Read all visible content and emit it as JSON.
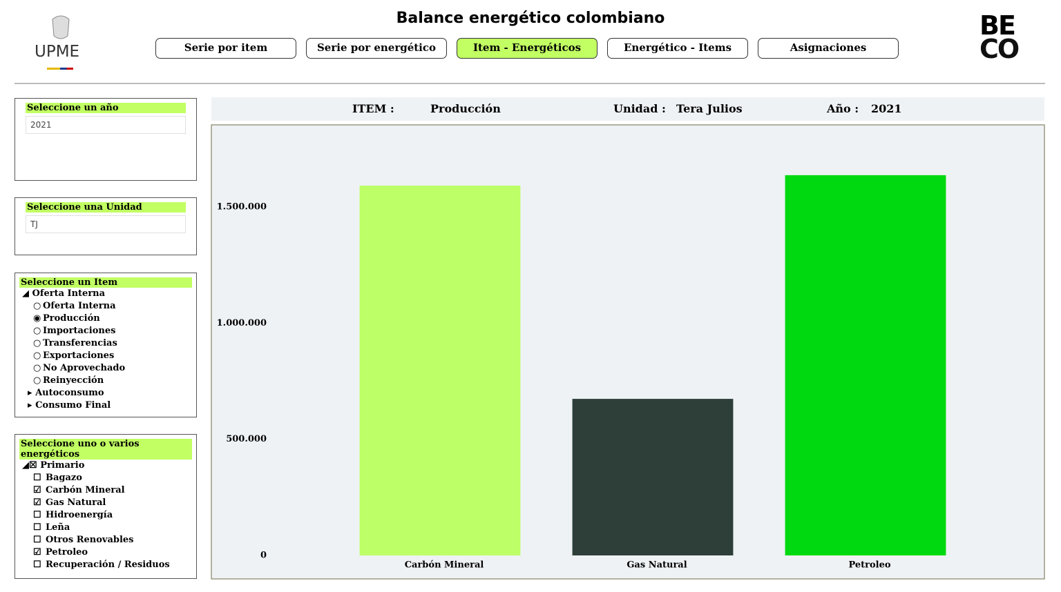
{
  "header": {
    "logo_left": "UPME",
    "title": "Balance energético colombiano",
    "logo_right_top": "BE",
    "logo_right_bottom": "CO",
    "nav": [
      "Serie por item",
      "Serie por energético",
      "Item - Energéticos",
      "Energético - Items",
      "Asignaciones"
    ],
    "nav_active": 2
  },
  "filters": {
    "year": {
      "title": "Seleccione un año",
      "value": "2021"
    },
    "unit": {
      "title": "Seleccione una Unidad",
      "value": "TJ"
    },
    "item": {
      "title": "Seleccione un Item",
      "group": "Oferta Interna",
      "options": [
        {
          "label": "Oferta Interna",
          "selected": false
        },
        {
          "label": "Producción",
          "selected": true
        },
        {
          "label": "Importaciones",
          "selected": false
        },
        {
          "label": "Transferencias",
          "selected": false
        },
        {
          "label": "Exportaciones",
          "selected": false
        },
        {
          "label": "No Aprovechado",
          "selected": false
        },
        {
          "label": "Reinyección",
          "selected": false
        }
      ],
      "more": [
        "Autoconsumo",
        "Consumo Final"
      ]
    },
    "energetics": {
      "title": "Seleccione uno o varios energéticos",
      "group": "Primario",
      "options": [
        {
          "label": "Bagazo",
          "checked": false
        },
        {
          "label": "Carbón Mineral",
          "checked": true
        },
        {
          "label": "Gas Natural",
          "checked": true
        },
        {
          "label": "Hidroenergía",
          "checked": false
        },
        {
          "label": "Leña",
          "checked": false
        },
        {
          "label": "Otros Renovables",
          "checked": false
        },
        {
          "label": "Petroleo",
          "checked": true
        },
        {
          "label": "Recuperación / Residuos",
          "checked": false
        }
      ]
    }
  },
  "info": {
    "item_label": "ITEM  :",
    "item_value": "Producción",
    "unit_label": "Unidad  :",
    "unit_value": "Tera Julios",
    "year_label": "Año  :",
    "year_value": "2021"
  },
  "chart_data": {
    "type": "bar",
    "categories": [
      "Carbón Mineral",
      "Gas Natural",
      "Petroleo"
    ],
    "values": [
      1592000,
      674000,
      1637000
    ],
    "colors": [
      "#bcff66",
      "#2d3f38",
      "#00d910"
    ],
    "ylim": [
      0,
      1800000
    ],
    "yticks": [
      0,
      {
        "value": 500000,
        "label": "500.000"
      },
      {
        "value": 1000000,
        "label": "1.000.000"
      },
      {
        "value": 1500000,
        "label": "1.500.000"
      }
    ],
    "grid": false
  }
}
